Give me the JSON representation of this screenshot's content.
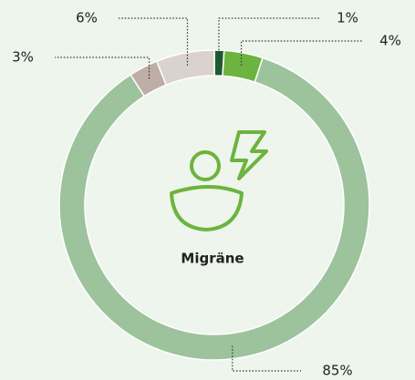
{
  "chart_data": {
    "type": "pie",
    "center_label": "Migräne",
    "values": [
      1,
      4,
      85,
      3,
      6
    ],
    "value_labels": [
      "1%",
      "4%",
      "85%",
      "3%",
      "6%"
    ],
    "colors": [
      "#1f5a2e",
      "#6db33f",
      "#9cc39c",
      "#bfaea6",
      "#dad2cd"
    ]
  }
}
